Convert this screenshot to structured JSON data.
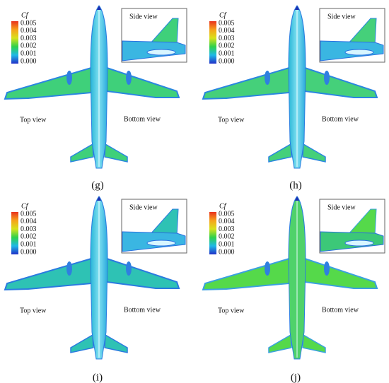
{
  "panels": [
    {
      "label": "(g)",
      "legend": {
        "title": "Cf",
        "ticks": [
          "0.005",
          "0.004",
          "0.003",
          "0.002",
          "0.001",
          "0.000"
        ]
      },
      "side_view": "Side view",
      "top_view": "Top view",
      "bottom_view": "Bottom view"
    },
    {
      "label": "(h)",
      "legend": {
        "title": "Cf",
        "ticks": [
          "0.005",
          "0.004",
          "0.003",
          "0.002",
          "0.001",
          "0.000"
        ]
      },
      "side_view": "Side view",
      "top_view": "Top view",
      "bottom_view": "Bottom view"
    },
    {
      "label": "(i)",
      "legend": {
        "title": "Cf",
        "ticks": [
          "0.005",
          "0.004",
          "0.003",
          "0.002",
          "0.001",
          "0.000"
        ]
      },
      "side_view": "Side view",
      "top_view": "Top view",
      "bottom_view": "Bottom view"
    },
    {
      "label": "(j)",
      "legend": {
        "title": "Cf",
        "ticks": [
          "0.005",
          "0.004",
          "0.003",
          "0.002",
          "0.001",
          "0.000"
        ]
      },
      "side_view": "Side view",
      "top_view": "Top view",
      "bottom_view": "Bottom view"
    }
  ]
}
